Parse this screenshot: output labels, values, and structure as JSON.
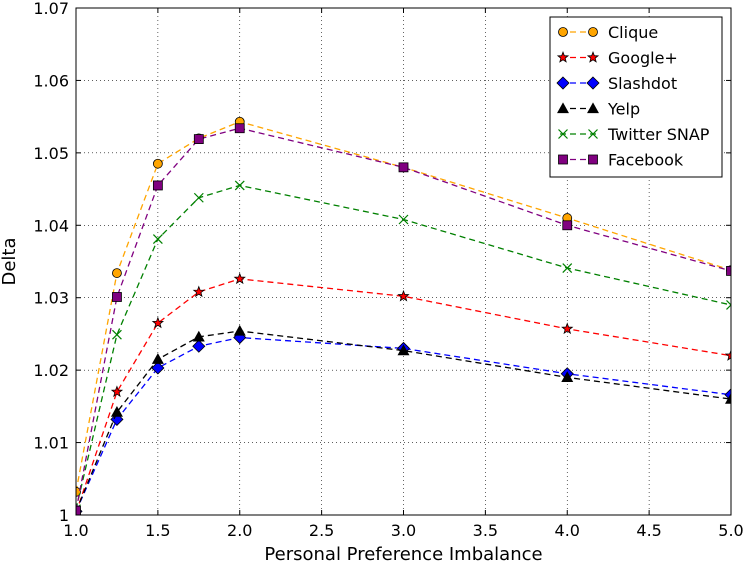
{
  "chart_data": {
    "type": "line",
    "title": "",
    "xlabel": "Personal Preference Imbalance",
    "ylabel": "Delta",
    "xlim": [
      1.0,
      5.0
    ],
    "ylim": [
      1.0,
      1.07
    ],
    "x_ticks": [
      1.0,
      1.5,
      2.0,
      2.5,
      3.0,
      3.5,
      4.0,
      4.5,
      5.0
    ],
    "x_tick_labels": [
      "1.0",
      "1.5",
      "2.0",
      "2.5",
      "3.0",
      "3.5",
      "4.0",
      "4.5",
      "5.0"
    ],
    "y_ticks": [
      1.0,
      1.01,
      1.02,
      1.03,
      1.04,
      1.05,
      1.06,
      1.07
    ],
    "y_tick_labels": [
      "1",
      "1.01",
      "1.02",
      "1.03",
      "1.04",
      "1.05",
      "1.06",
      "1.07"
    ],
    "grid": true,
    "legend_position": "top-right",
    "x": [
      1.0,
      1.25,
      1.5,
      1.75,
      2.0,
      3.0,
      4.0,
      5.0
    ],
    "series": [
      {
        "name": "Clique",
        "color": "#FFA500",
        "marker": "circle",
        "values": [
          1.0032,
          1.0334,
          1.0485,
          1.052,
          1.0543,
          1.048,
          1.041,
          1.0338
        ]
      },
      {
        "name": "Google+",
        "color": "#FF0000",
        "marker": "star",
        "values": [
          1.0003,
          1.017,
          1.0265,
          1.0308,
          1.0326,
          1.0302,
          1.0257,
          1.022
        ]
      },
      {
        "name": "Slashdot",
        "color": "#0000FF",
        "marker": "diamond",
        "values": [
          1.0005,
          1.0132,
          1.0203,
          1.0233,
          1.0245,
          1.023,
          1.0195,
          1.0166
        ]
      },
      {
        "name": "Yelp",
        "color": "#000000",
        "marker": "triangle",
        "values": [
          1.0005,
          1.0142,
          1.0215,
          1.0246,
          1.0254,
          1.0227,
          1.019,
          1.016
        ]
      },
      {
        "name": "Twitter SNAP",
        "color": "#008000",
        "marker": "x",
        "values": [
          1.0008,
          1.0249,
          1.0381,
          1.0438,
          1.0455,
          1.0408,
          1.0341,
          1.029
        ]
      },
      {
        "name": "Facebook",
        "color": "#800080",
        "marker": "square",
        "values": [
          1.0006,
          1.0301,
          1.0455,
          1.0519,
          1.0534,
          1.048,
          1.04,
          1.0337
        ]
      }
    ]
  }
}
